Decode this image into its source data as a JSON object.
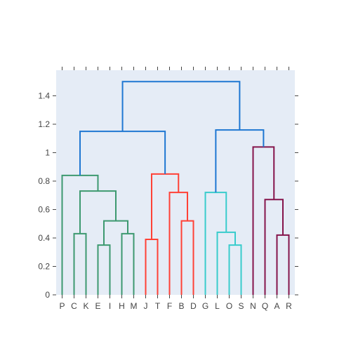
{
  "chart_data": {
    "type": "dendrogram",
    "title": "",
    "xlabel": "",
    "ylabel": "",
    "ylim": [
      0,
      1.58
    ],
    "yticks": [
      0,
      0.2,
      0.4,
      0.6,
      0.8,
      1,
      1.2,
      1.4
    ],
    "ytick_labels": [
      "0",
      "0.2",
      "0.4",
      "0.6",
      "0.8",
      "1",
      "1.2",
      "1.4"
    ],
    "leaves": [
      "P",
      "C",
      "K",
      "E",
      "I",
      "H",
      "M",
      "J",
      "T",
      "F",
      "B",
      "D",
      "G",
      "L",
      "O",
      "S",
      "N",
      "Q",
      "A",
      "R"
    ],
    "colors": {
      "plot_bg": "#e5ecf6",
      "root": "#1f77d2",
      "cluster_green": "#3d9970",
      "cluster_red": "#ff4136",
      "cluster_cyan": "#39cccc",
      "cluster_maroon": "#85144b",
      "tick": "#444444"
    },
    "links": [
      {
        "left": "C",
        "right": "K",
        "height": 0.43,
        "color": "cluster_green"
      },
      {
        "left": "E",
        "right": "I",
        "height": 0.35,
        "color": "cluster_green"
      },
      {
        "left": "H",
        "right": "M",
        "height": 0.43,
        "color": "cluster_green"
      },
      {
        "left": "E|I",
        "right": "H|M",
        "height": 0.52,
        "color": "cluster_green"
      },
      {
        "left": "C|K",
        "right": "E|I|H|M",
        "height": 0.73,
        "color": "cluster_green"
      },
      {
        "left": "P",
        "right": "C|K|E|I|H|M",
        "height": 0.84,
        "color": "cluster_green"
      },
      {
        "left": "J",
        "right": "T",
        "height": 0.39,
        "color": "cluster_red"
      },
      {
        "left": "B",
        "right": "D",
        "height": 0.52,
        "color": "cluster_red"
      },
      {
        "left": "F",
        "right": "B|D",
        "height": 0.72,
        "color": "cluster_red"
      },
      {
        "left": "J|T",
        "right": "F|B|D",
        "height": 0.85,
        "color": "cluster_red"
      },
      {
        "left": "O",
        "right": "S",
        "height": 0.35,
        "color": "cluster_cyan"
      },
      {
        "left": "L",
        "right": "O|S",
        "height": 0.44,
        "color": "cluster_cyan"
      },
      {
        "left": "G",
        "right": "L|O|S",
        "height": 0.72,
        "color": "cluster_cyan"
      },
      {
        "left": "A",
        "right": "R",
        "height": 0.42,
        "color": "cluster_maroon"
      },
      {
        "left": "Q",
        "right": "A|R",
        "height": 0.67,
        "color": "cluster_maroon"
      },
      {
        "left": "N",
        "right": "Q|A|R",
        "height": 1.04,
        "color": "cluster_maroon"
      },
      {
        "left": "P..M",
        "right": "J..D",
        "height": 1.15,
        "color": "root"
      },
      {
        "left": "G..S",
        "right": "N..R",
        "height": 1.16,
        "color": "root"
      },
      {
        "left": "P..D",
        "right": "G..R",
        "height": 1.5,
        "color": "root"
      }
    ]
  }
}
